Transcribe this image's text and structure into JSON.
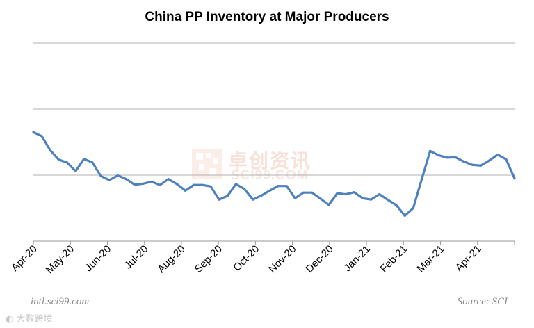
{
  "chart_data": {
    "type": "line",
    "title": "China PP Inventory at Major Producers",
    "xlabel": "",
    "ylabel": "",
    "ylim": [
      0,
      6
    ],
    "yticks": [
      1,
      2,
      3,
      4,
      5,
      6
    ],
    "grid": true,
    "x_tick_labels": [
      "Apr-20",
      "May-20",
      "Jun-20",
      "Jul-20",
      "Aug-20",
      "Sep-20",
      "Oct-20",
      "Nov-20",
      "Dec-20",
      "Jan-21",
      "Feb-21",
      "Mar-21",
      "Apr-21"
    ],
    "series": [
      {
        "name": "PP Inventory",
        "color": "#4f81bd",
        "values": [
          3.3,
          3.18,
          2.75,
          2.47,
          2.38,
          2.12,
          2.49,
          2.38,
          1.97,
          1.85,
          1.99,
          1.88,
          1.71,
          1.74,
          1.8,
          1.7,
          1.88,
          1.73,
          1.53,
          1.7,
          1.7,
          1.66,
          1.26,
          1.37,
          1.73,
          1.58,
          1.26,
          1.38,
          1.53,
          1.67,
          1.67,
          1.3,
          1.47,
          1.47,
          1.29,
          1.1,
          1.45,
          1.42,
          1.48,
          1.3,
          1.26,
          1.42,
          1.25,
          1.09,
          0.77,
          1.0,
          1.87,
          2.73,
          2.6,
          2.53,
          2.54,
          2.41,
          2.31,
          2.29,
          2.44,
          2.62,
          2.48,
          1.9
        ]
      }
    ]
  },
  "footer": {
    "site": "intl.sci99.com",
    "source": "Source: SCI"
  },
  "watermark": {
    "cn": "卓创资讯",
    "en": "SCI99.COM",
    "bottom_logo": "大数跨境"
  }
}
